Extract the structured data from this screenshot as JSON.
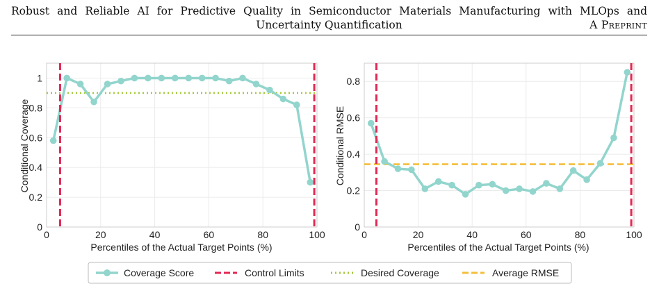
{
  "header": {
    "title_line1": "Robust and Reliable AI for Predictive Quality in Semiconductor Materials Manufacturing with MLOps and",
    "title_line2": "Uncertainty Quantification",
    "tag": "A Preprint"
  },
  "legend": {
    "items": [
      {
        "label": "Coverage Score",
        "style": "line-marker",
        "color": "#92d5cd"
      },
      {
        "label": "Control Limits",
        "style": "dashed",
        "color": "#e32753"
      },
      {
        "label": "Desired Coverage",
        "style": "dotted",
        "color": "#a5c93a"
      },
      {
        "label": "Average RMSE",
        "style": "dashed",
        "color": "#f5be3a"
      }
    ]
  },
  "chart_data": [
    {
      "type": "line",
      "xlabel": "Percentiles of the Actual Target Points (%)",
      "ylabel": "Conditional Coverage",
      "xlim": [
        0,
        100
      ],
      "ylim": [
        0.0,
        1.1
      ],
      "xticks": [
        0,
        20,
        40,
        60,
        80,
        100
      ],
      "yticks": [
        0.0,
        0.2,
        0.4,
        0.6,
        0.8,
        1.0
      ],
      "grid": true,
      "series": [
        {
          "name": "Coverage Score",
          "color": "#92d5cd",
          "x": [
            2.5,
            7.5,
            12.5,
            17.5,
            22.5,
            27.5,
            32.5,
            37.5,
            42.5,
            47.5,
            52.5,
            57.5,
            62.5,
            67.5,
            72.5,
            77.5,
            82.5,
            87.5,
            92.5,
            97.5
          ],
          "values": [
            0.58,
            1.0,
            0.96,
            0.84,
            0.96,
            0.98,
            1.0,
            1.0,
            1.0,
            1.0,
            1.0,
            1.0,
            1.0,
            0.98,
            1.0,
            0.96,
            0.92,
            0.86,
            0.82,
            0.3
          ]
        }
      ],
      "control_limits": [
        5.0,
        99.0
      ],
      "reference_line": {
        "name": "Desired Coverage",
        "value": 0.9,
        "color": "#a5c93a"
      }
    },
    {
      "type": "line",
      "xlabel": "Percentiles of the Actual Target Points (%)",
      "ylabel": "Conditional RMSE",
      "xlim": [
        0,
        100
      ],
      "ylim": [
        0.0,
        0.9
      ],
      "xticks": [
        0,
        20,
        40,
        60,
        80,
        100
      ],
      "yticks": [
        0.0,
        0.2,
        0.4,
        0.6,
        0.8
      ],
      "grid": true,
      "series": [
        {
          "name": "Coverage Score",
          "color": "#92d5cd",
          "x": [
            2.5,
            7.5,
            12.5,
            17.5,
            22.5,
            27.5,
            32.5,
            37.5,
            42.5,
            47.5,
            52.5,
            57.5,
            62.5,
            67.5,
            72.5,
            77.5,
            82.5,
            87.5,
            92.5,
            97.5
          ],
          "values": [
            0.57,
            0.36,
            0.32,
            0.315,
            0.21,
            0.25,
            0.23,
            0.18,
            0.23,
            0.235,
            0.2,
            0.21,
            0.195,
            0.24,
            0.21,
            0.31,
            0.26,
            0.35,
            0.49,
            0.85
          ]
        }
      ],
      "control_limits": [
        4.5,
        99.0
      ],
      "reference_line": {
        "name": "Average RMSE",
        "value": 0.345,
        "color": "#f5be3a"
      }
    }
  ]
}
